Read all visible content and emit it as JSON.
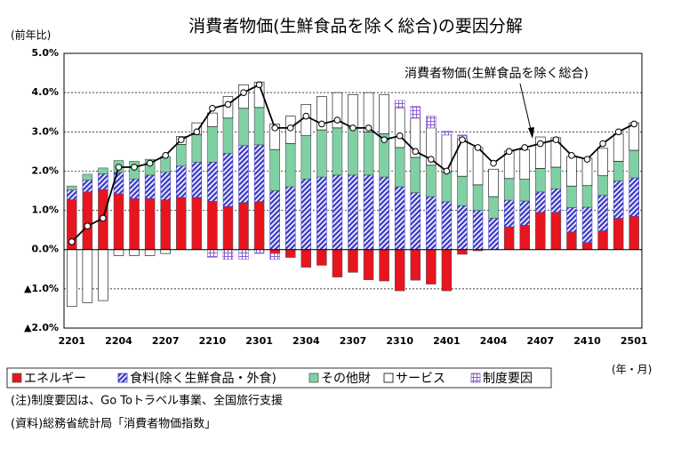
{
  "chart_data": {
    "type": "bar",
    "title": "消費者物価(生鮮食品を除く総合)の要因分解",
    "ylabel": "(前年比)",
    "xlabel": "(年・月)",
    "annotation": "消費者物価(生鮮食品を除く総合)",
    "notes": [
      "(注)制度要因は、Go Toトラベル事業、全国旅行支援",
      "(資料)総務省統計局「消費者物価指数」"
    ],
    "categories": [
      "2201",
      null,
      null,
      "2204",
      null,
      null,
      "2207",
      null,
      null,
      "2210",
      null,
      null,
      "2301",
      null,
      null,
      "2304",
      null,
      null,
      "2307",
      null,
      null,
      "2310",
      null,
      null,
      "2401",
      null,
      null,
      "2404",
      null,
      null,
      "2407",
      null,
      null,
      "2410",
      null,
      null,
      "2501"
    ],
    "ylim": [
      -2.0,
      5.0
    ],
    "yticks": [
      {
        "value": -2.0,
        "label": "▲2.0%"
      },
      {
        "value": -1.0,
        "label": "▲1.0%"
      },
      {
        "value": 0,
        "label": "0.0%"
      },
      {
        "value": 1.0,
        "label": "1.0%"
      },
      {
        "value": 2.0,
        "label": "2.0%"
      },
      {
        "value": 3.0,
        "label": "3.0%"
      },
      {
        "value": 4.0,
        "label": "4.0%"
      },
      {
        "value": 5.0,
        "label": "5.0%"
      }
    ],
    "grid": true,
    "legend": "bottom",
    "series": [
      {
        "name": "エネルギー",
        "color": "#e8141e",
        "values": [
          1.27,
          1.47,
          1.53,
          1.42,
          1.3,
          1.3,
          1.27,
          1.33,
          1.33,
          1.23,
          1.1,
          1.2,
          1.22,
          -0.1,
          -0.2,
          -0.45,
          -0.4,
          -0.7,
          -0.58,
          -0.77,
          -0.8,
          -1.05,
          -0.78,
          -0.88,
          -1.05,
          -0.12,
          -0.03,
          0,
          0.58,
          0.62,
          0.95,
          0.95,
          0.45,
          0.18,
          0.48,
          0.8,
          0.85
        ]
      },
      {
        "name": "食料(除く生鮮食品・外食)",
        "color": "#3f3fc8",
        "values": [
          0.25,
          0.3,
          0.4,
          0.55,
          0.5,
          0.6,
          0.7,
          0.8,
          0.9,
          1.0,
          1.35,
          1.45,
          1.45,
          1.5,
          1.6,
          1.8,
          1.85,
          1.9,
          1.9,
          1.9,
          1.85,
          1.6,
          1.45,
          1.35,
          1.22,
          1.12,
          1.0,
          0.8,
          0.68,
          0.62,
          0.52,
          0.6,
          0.62,
          0.9,
          0.9,
          0.95,
          0.98
        ]
      },
      {
        "name": "その他財",
        "color": "#7fd1a4",
        "values": [
          0.1,
          0.15,
          0.15,
          0.3,
          0.45,
          0.4,
          0.4,
          0.55,
          0.7,
          0.9,
          0.9,
          0.95,
          0.95,
          1.05,
          1.1,
          1.1,
          1.2,
          1.2,
          1.2,
          1.1,
          1.1,
          1.0,
          0.9,
          0.8,
          0.75,
          0.75,
          0.65,
          0.55,
          0.55,
          0.55,
          0.6,
          0.55,
          0.55,
          0.55,
          0.5,
          0.5,
          0.7
        ]
      },
      {
        "name": "サービス",
        "color": "#ffffff",
        "values": [
          -1.45,
          -1.35,
          -1.3,
          -0.15,
          -0.15,
          -0.15,
          -0.1,
          0.2,
          0.3,
          0.35,
          0.55,
          0.6,
          0.65,
          0.65,
          0.7,
          0.8,
          0.85,
          0.9,
          0.85,
          1.0,
          1.0,
          1.0,
          1.0,
          0.95,
          0.95,
          0.95,
          0.95,
          0.7,
          0.7,
          0.75,
          0.8,
          0.75,
          0.75,
          0.7,
          0.7,
          0.7,
          0.7
        ]
      },
      {
        "name": "制度要因",
        "color": "#8b5fd0",
        "values": [
          0,
          0,
          0,
          0,
          0,
          0,
          0,
          0,
          0,
          -0.2,
          -0.25,
          -0.25,
          -0.1,
          -0.15,
          0,
          0,
          0,
          0,
          0,
          0,
          0,
          0.2,
          0.3,
          0.3,
          0.1,
          0.1,
          0,
          0,
          0,
          0,
          0,
          0,
          0,
          0,
          0,
          0,
          0
        ]
      }
    ],
    "line": {
      "name": "消費者物価(生鮮食品を除く総合)",
      "color": "#000000",
      "values": [
        0.2,
        0.6,
        0.8,
        2.1,
        2.1,
        2.2,
        2.4,
        2.8,
        3.0,
        3.6,
        3.7,
        4.0,
        4.2,
        3.1,
        3.1,
        3.4,
        3.2,
        3.3,
        3.1,
        3.1,
        2.8,
        2.9,
        2.5,
        2.3,
        2.0,
        2.8,
        2.6,
        2.2,
        2.5,
        2.6,
        2.7,
        2.8,
        2.4,
        2.3,
        2.7,
        3.0,
        3.2
      ]
    }
  }
}
